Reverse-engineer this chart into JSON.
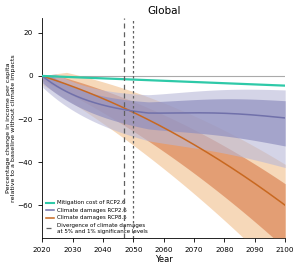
{
  "title": "Global",
  "xlabel": "Year",
  "ylabel": "Percentage change in income per capita\nrelative to a baseline without climate impacts",
  "xlim": [
    2020,
    2100
  ],
  "ylim": [
    -75,
    27
  ],
  "yticks": [
    20,
    0,
    -20,
    -40,
    -60
  ],
  "xticks": [
    2020,
    2030,
    2040,
    2050,
    2060,
    2070,
    2080,
    2090,
    2100
  ],
  "divergence_x1": 2047,
  "divergence_x2": 2050,
  "colors": {
    "mitigation": "#2ec9a8",
    "rcp26_line": "#7070aa",
    "rcp85_line": "#c86820",
    "rcp26_fill_inner": "#9090c0",
    "rcp26_fill_outer": "#b8b8d8",
    "rcp85_fill_inner": "#d98050",
    "rcp85_fill_outer": "#f0b880",
    "zero_line": "#aaaaaa",
    "divergence": "#606060"
  },
  "legend_labels": [
    "Mitigation cost of RCP2.6",
    "Climate damages RCP2.6",
    "Climate damages RCP8.5",
    "Divergence of climate damages\nat 5% and 1% significance levels"
  ]
}
